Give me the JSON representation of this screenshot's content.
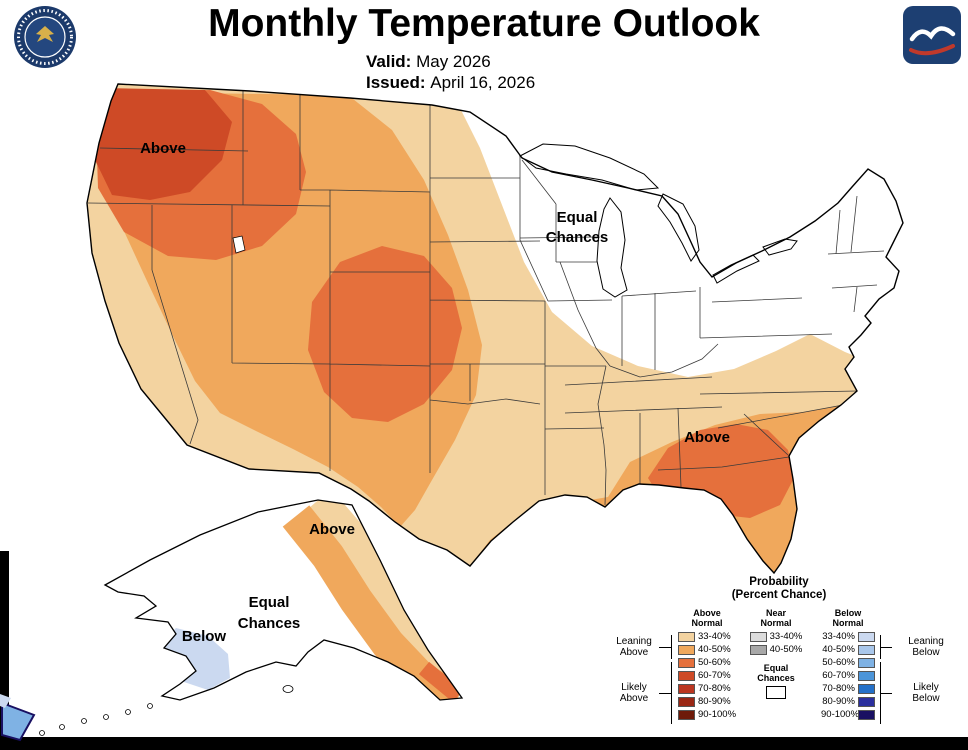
{
  "header": {
    "title": "Monthly Temperature Outlook",
    "valid_label": "Valid:",
    "valid_value": "May 2026",
    "issued_label": "Issued:",
    "issued_value": "April 16, 2026"
  },
  "logos": {
    "left_alt": "US Department of Commerce seal",
    "right_alt": "NOAA National Weather Service logo"
  },
  "map_labels": {
    "pnw_above": "Above",
    "midwest_equal_1": "Equal",
    "midwest_equal_2": "Chances",
    "southeast_above": "Above",
    "alaska_above": "Above",
    "alaska_equal_1": "Equal",
    "alaska_equal_2": "Chances",
    "alaska_below": "Below"
  },
  "legend": {
    "title_1": "Probability",
    "title_2": "(Percent Chance)",
    "above": {
      "header_1": "Above",
      "header_2": "Normal",
      "rows": [
        {
          "label": "33-40%",
          "color": "#F3D3A0"
        },
        {
          "label": "40-50%",
          "color": "#F0A85C"
        },
        {
          "label": "50-60%",
          "color": "#E5703C"
        },
        {
          "label": "60-70%",
          "color": "#CE4A26"
        },
        {
          "label": "70-80%",
          "color": "#BB3620"
        },
        {
          "label": "80-90%",
          "color": "#9A2714"
        },
        {
          "label": "90-100%",
          "color": "#6E1A09"
        }
      ]
    },
    "near": {
      "header_1": "Near",
      "header_2": "Normal",
      "rows": [
        {
          "label": "33-40%",
          "color": "#DCDCDC"
        },
        {
          "label": "40-50%",
          "color": "#A8A8A8"
        }
      ],
      "equal_1": "Equal",
      "equal_2": "Chances"
    },
    "below": {
      "header_1": "Below",
      "header_2": "Normal",
      "rows": [
        {
          "label": "33-40%",
          "color": "#CBD9F0"
        },
        {
          "label": "40-50%",
          "color": "#A9C7EB"
        },
        {
          "label": "50-60%",
          "color": "#7FB2E4"
        },
        {
          "label": "60-70%",
          "color": "#4C95D9"
        },
        {
          "label": "70-80%",
          "color": "#2470C8"
        },
        {
          "label": "80-90%",
          "color": "#2B2F9E"
        },
        {
          "label": "90-100%",
          "color": "#191062"
        }
      ]
    },
    "groups": {
      "leaning_above_1": "Leaning",
      "leaning_above_2": "Above",
      "likely_above_1": "Likely",
      "likely_above_2": "Above",
      "leaning_below_1": "Leaning",
      "leaning_below_2": "Below",
      "likely_below_1": "Likely",
      "likely_below_2": "Below"
    }
  },
  "colors": {
    "a33": "#F3D3A0",
    "a40": "#F0A85C",
    "a50": "#E5703C",
    "a60": "#CE4A26",
    "b33": "#CBD9F0",
    "b50": "#7FB2E4",
    "b90": "#191062",
    "lake": "#FFFFFF",
    "outline": "#000000"
  }
}
